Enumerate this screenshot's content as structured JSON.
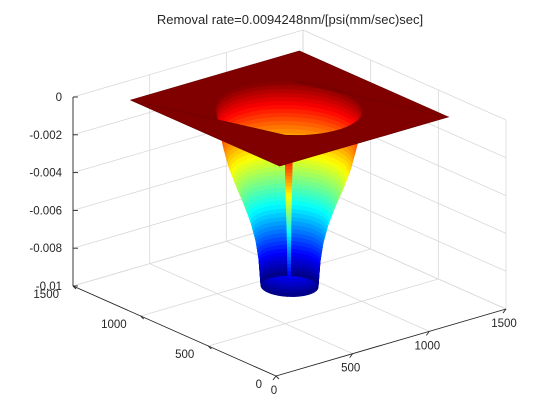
{
  "chart_data": {
    "type": "surface",
    "title": "Removal rate=0.0094248nm/[psi(mm/sec)sec]",
    "xlabel": "",
    "ylabel": "",
    "zlabel": "",
    "x_ticks": [
      "0",
      "500",
      "1000",
      "1500"
    ],
    "y_ticks": [
      "0",
      "500",
      "1000",
      "1500"
    ],
    "z_ticks": [
      "0",
      "-0.002",
      "-0.004",
      "-0.006",
      "-0.008",
      "-0.01"
    ],
    "xlim": [
      0,
      1500
    ],
    "ylim": [
      0,
      1500
    ],
    "zlim": [
      -0.01,
      0
    ],
    "grid": true,
    "colormap": "jet",
    "surface": {
      "center": [
        750,
        750
      ],
      "plane_extent": [
        [
          200,
          1300
        ],
        [
          200,
          1300
        ]
      ],
      "plane_z": 0,
      "profile": [
        {
          "r": 360,
          "z": 0
        },
        {
          "r": 345,
          "z": -0.001
        },
        {
          "r": 325,
          "z": -0.002
        },
        {
          "r": 300,
          "z": -0.003
        },
        {
          "r": 265,
          "z": -0.004
        },
        {
          "r": 225,
          "z": -0.005
        },
        {
          "r": 190,
          "z": -0.006
        },
        {
          "r": 165,
          "z": -0.007
        },
        {
          "r": 150,
          "z": -0.008
        },
        {
          "r": 143,
          "z": -0.009
        },
        {
          "r": 140,
          "z": -0.0094
        }
      ]
    }
  },
  "colors": {
    "axis": "#262626",
    "grid": "#d9d9d9",
    "plane": "#800000"
  }
}
